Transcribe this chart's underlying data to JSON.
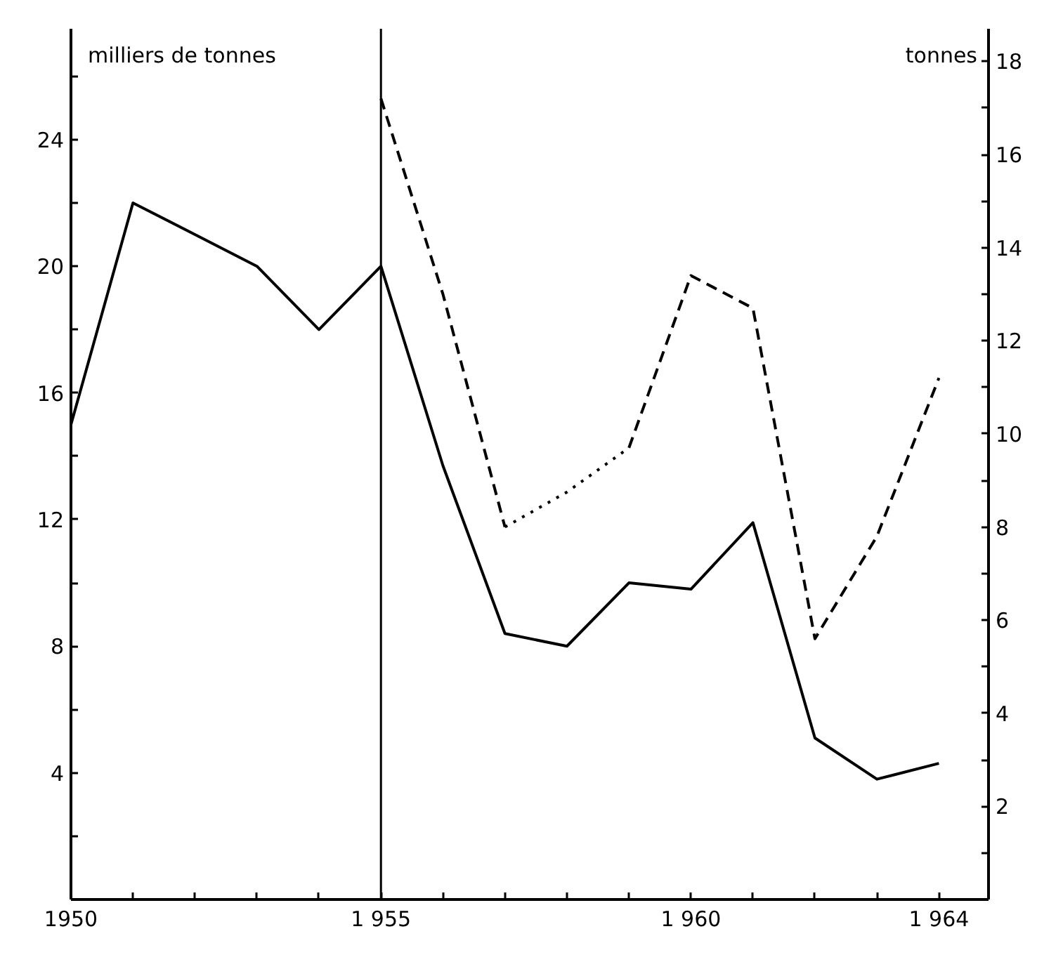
{
  "chart_data": {
    "type": "line",
    "ylabel": "milliers de tonnes",
    "y2label": "tonnes",
    "x": [
      1950,
      1951,
      1952,
      1953,
      1954,
      1955,
      1956,
      1957,
      1958,
      1959,
      1960,
      1961,
      1962,
      1963,
      1964
    ],
    "xlim": [
      1950,
      1964.8
    ],
    "xticks": [
      {
        "value": 1950,
        "label": "1950"
      },
      {
        "value": 1951,
        "label": null
      },
      {
        "value": 1952,
        "label": null
      },
      {
        "value": 1953,
        "label": null
      },
      {
        "value": 1954,
        "label": null
      },
      {
        "value": 1955,
        "label": "1 955"
      },
      {
        "value": 1956,
        "label": null
      },
      {
        "value": 1957,
        "label": null
      },
      {
        "value": 1958,
        "label": null
      },
      {
        "value": 1959,
        "label": null
      },
      {
        "value": 1960,
        "label": "1 960"
      },
      {
        "value": 1961,
        "label": null
      },
      {
        "value": 1962,
        "label": null
      },
      {
        "value": 1963,
        "label": null
      },
      {
        "value": 1964,
        "label": "1 964"
      }
    ],
    "ylim": [
      0,
      27.5
    ],
    "yticks": [
      {
        "value": 2,
        "label": null
      },
      4,
      {
        "value": 6,
        "label": null
      },
      8,
      {
        "value": 10,
        "label": null
      },
      12,
      {
        "value": 14,
        "label": null
      },
      16,
      {
        "value": 18,
        "label": null
      },
      20,
      {
        "value": 22,
        "label": null
      },
      24,
      {
        "value": 26,
        "label": null
      }
    ],
    "y2lim": [
      0,
      18.7
    ],
    "y2ticks": [
      {
        "value": 1,
        "label": null
      },
      2,
      {
        "value": 3,
        "label": null
      },
      4,
      {
        "value": 5,
        "label": null
      },
      6,
      {
        "value": 7,
        "label": null
      },
      8,
      {
        "value": 9,
        "label": null
      },
      10,
      {
        "value": 11,
        "label": null
      },
      12,
      {
        "value": 13,
        "label": null
      },
      14,
      {
        "value": 15,
        "label": null
      },
      16,
      {
        "value": 17,
        "label": null
      },
      18
    ],
    "grid": false,
    "marker": "none",
    "ref_lines": [
      {
        "axis": "x",
        "value": 1955,
        "color": "#000000",
        "line_style": "solid"
      }
    ],
    "series": [
      {
        "color": "#000000",
        "line_style": "solid",
        "values": [
          15,
          22,
          21,
          20,
          18,
          20,
          13.7,
          8.4,
          8.0,
          10.0,
          9.8,
          11.9,
          5.1,
          3.8,
          4.3
        ]
      },
      {
        "color": "#000000",
        "line_style": "dashed",
        "axis": "y2",
        "x": [
          1955,
          1956,
          1957
        ],
        "values": [
          17.2,
          13,
          8
        ]
      },
      {
        "color": "#000000",
        "line_style": "dotted",
        "axis": "y2",
        "x": [
          1957,
          1958,
          1959
        ],
        "values": [
          8,
          8.75,
          9.7
        ]
      },
      {
        "color": "#000000",
        "line_style": "dashed",
        "axis": "y2",
        "x": [
          1959,
          1960,
          1961,
          1962,
          1963,
          1964
        ],
        "values": [
          9.7,
          13.4,
          12.7,
          5.6,
          7.8,
          11.2
        ]
      }
    ]
  }
}
